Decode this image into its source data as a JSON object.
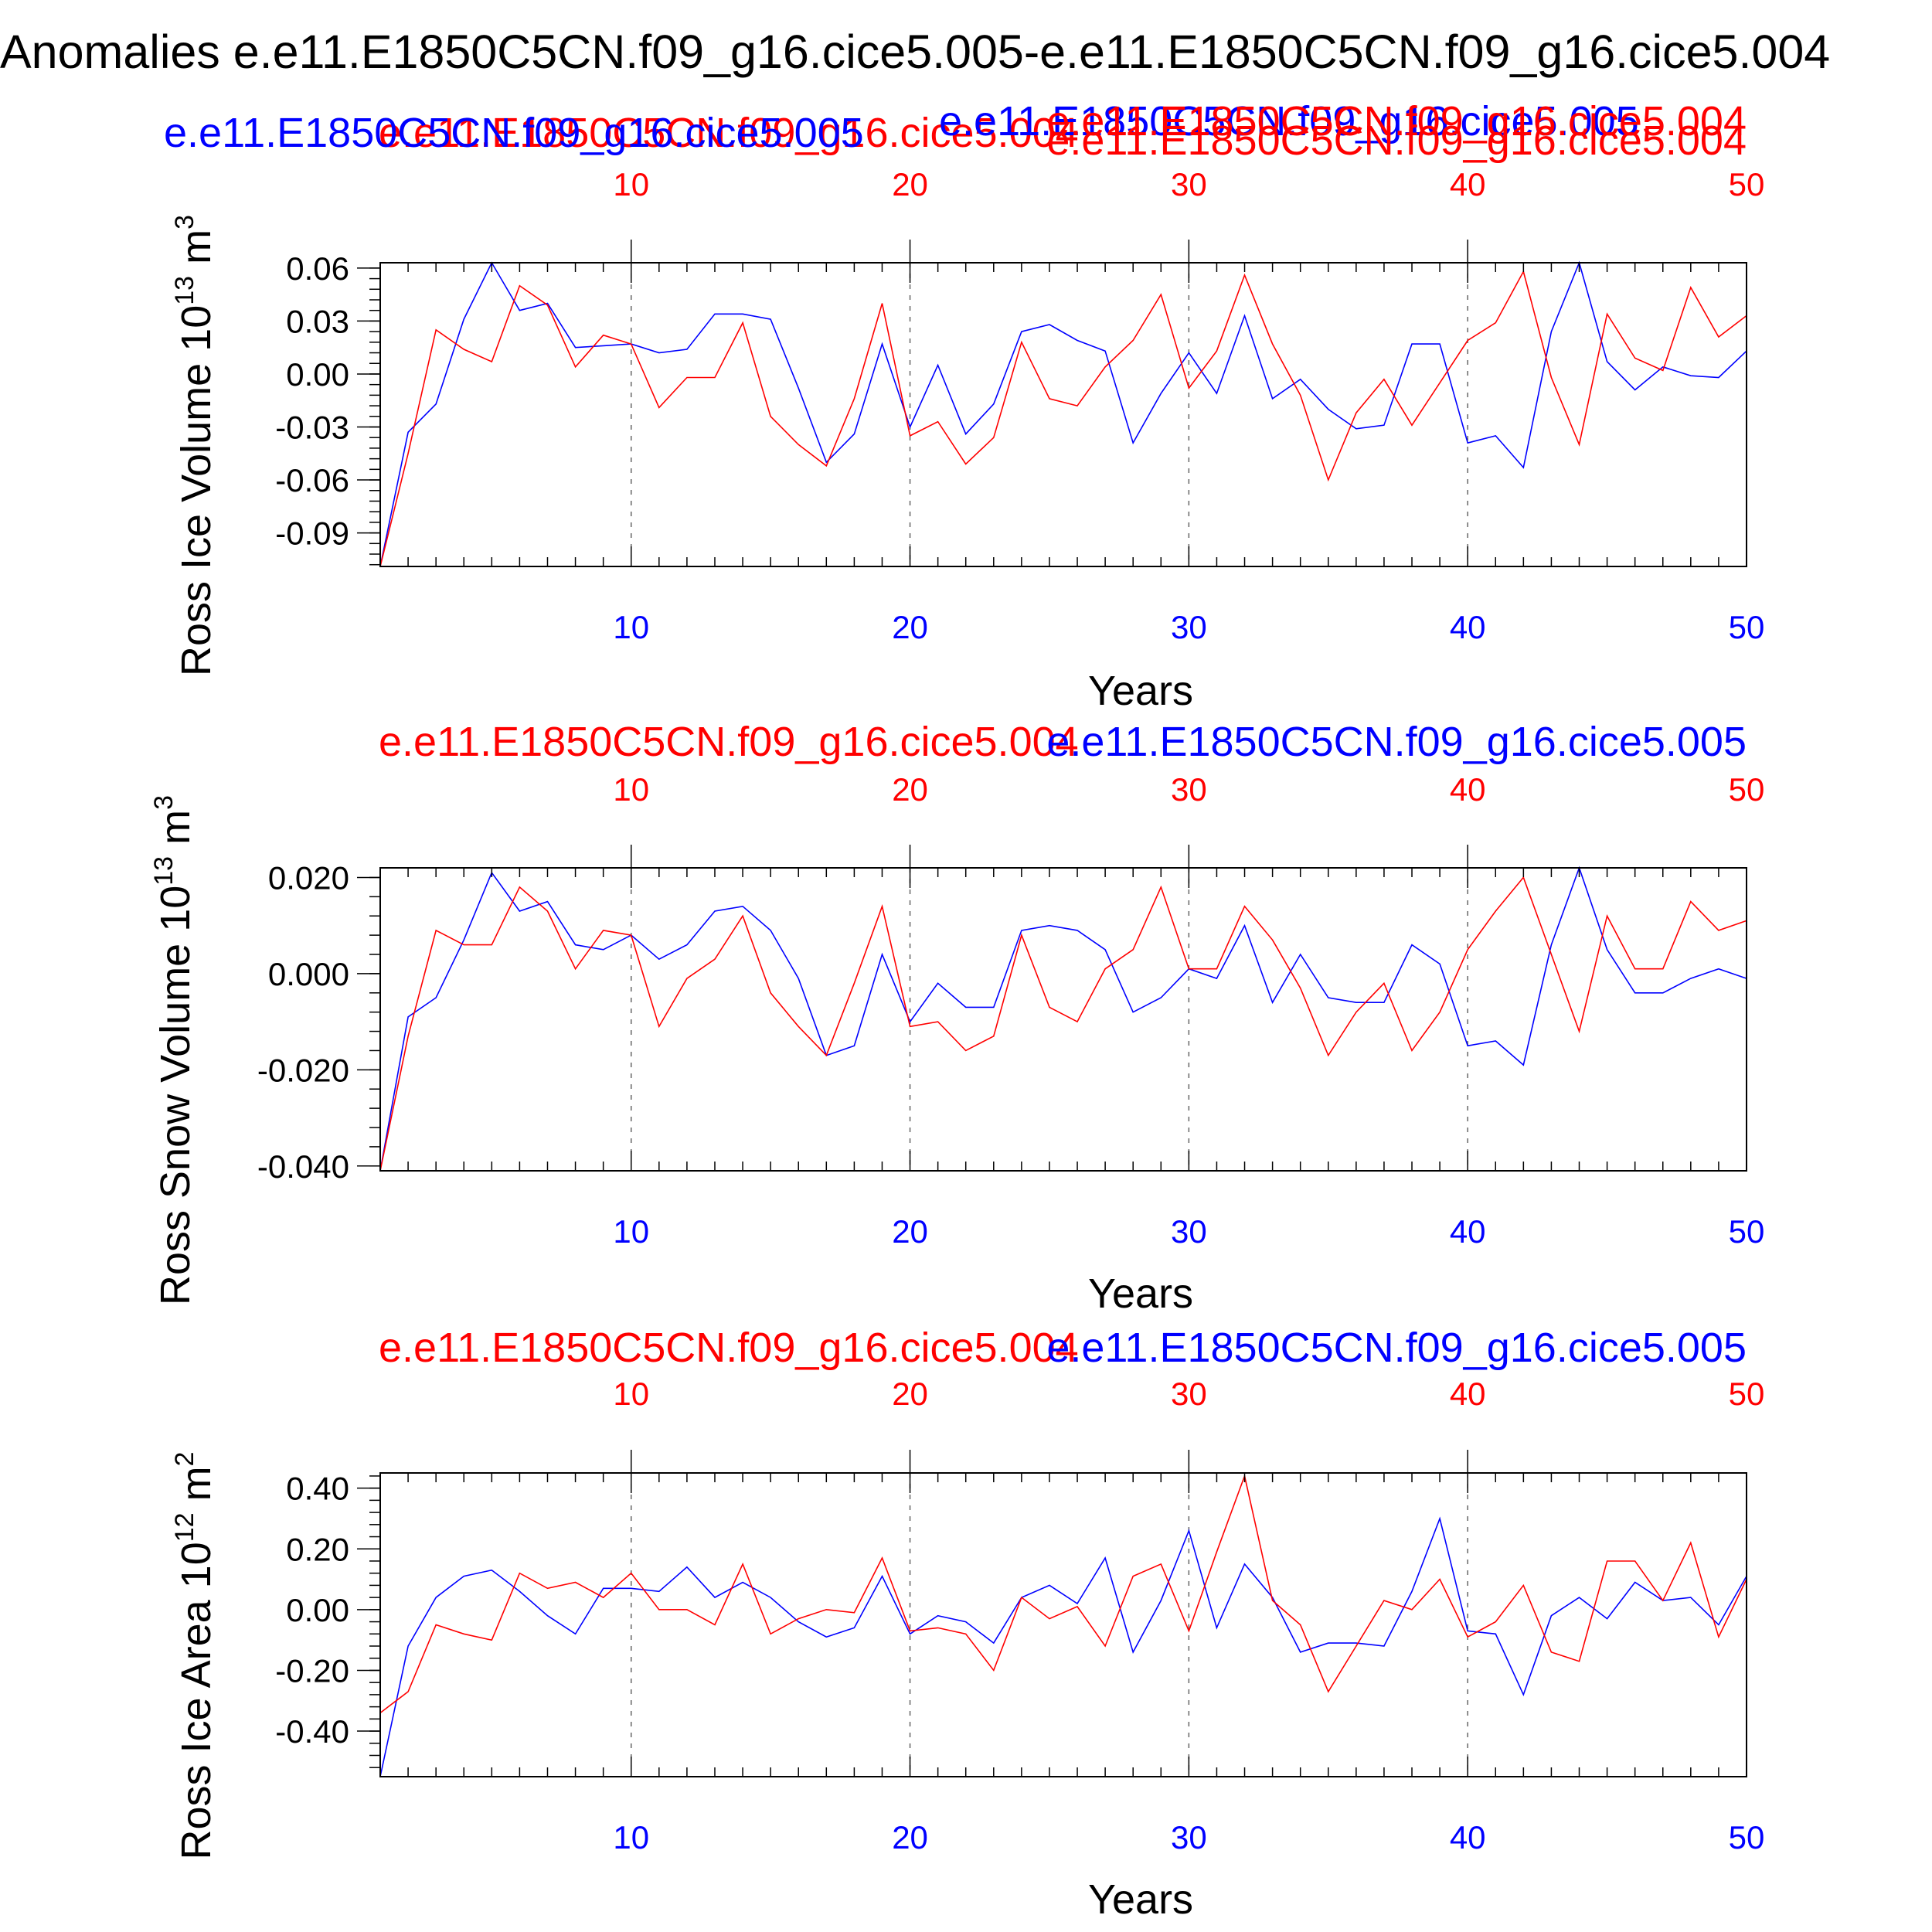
{
  "figure": {
    "title": "Anomalies e.e11.E1850C5CN.f09_g16.cice5.005-e.e11.E1850C5CN.f09_g16.cice5.004"
  },
  "colors": {
    "blue": "#0000ff",
    "red": "#ff0000",
    "axis": "#000000",
    "grid": "#666666"
  },
  "chart_data": [
    {
      "type": "line",
      "ylabel": "Ross Ice Volume 10",
      "ylabel_exp": "13",
      "ylabel_unit": " m",
      "ylabel_unit_exp": "3",
      "xlabel": "Years",
      "top_labels": [
        {
          "text": "e.e11.E1850C5CN.f09_g16.cice5.004",
          "color": "red"
        },
        {
          "text": "e.e11.E1850C5CN.f09_g16.cice5.005",
          "color": "blue"
        },
        {
          "text": "e.e11.E1850C5CN.f09_g16.cice5.005",
          "color": "blue"
        },
        {
          "text": "e.e11.E1850C5CN.f09_g16.cice5.004",
          "color": "red"
        },
        {
          "text": "e.e11.E1850C5CN.f09_g16.cice5.004",
          "color": "red"
        }
      ],
      "xlim": [
        1,
        50
      ],
      "xticks": [
        10,
        20,
        30,
        40,
        50
      ],
      "ylim": [
        -0.109,
        0.063
      ],
      "yticks": [
        0.06,
        0.03,
        0.0,
        -0.03,
        -0.06,
        -0.09
      ],
      "ytick_labels": [
        "0.06",
        "0.03",
        "0.00",
        "-0.03",
        "-0.06",
        "-0.09"
      ],
      "yminor_step": 0.006,
      "x": [
        1,
        2,
        3,
        4,
        5,
        6,
        7,
        8,
        9,
        10,
        11,
        12,
        13,
        14,
        15,
        16,
        17,
        18,
        19,
        20,
        21,
        22,
        23,
        24,
        25,
        26,
        27,
        28,
        29,
        30,
        31,
        32,
        33,
        34,
        35,
        36,
        37,
        38,
        39,
        40,
        41,
        42,
        43,
        44,
        45,
        46,
        47,
        48,
        49,
        50
      ],
      "series": [
        {
          "name": "e.e11.E1850C5CN.f09_g16.cice5.005",
          "color": "blue",
          "values": [
            -0.109,
            -0.033,
            -0.017,
            0.031,
            0.063,
            0.036,
            0.04,
            0.015,
            0.016,
            0.017,
            0.012,
            0.014,
            0.034,
            0.034,
            0.031,
            -0.008,
            -0.05,
            -0.034,
            0.017,
            -0.03,
            0.005,
            -0.034,
            -0.017,
            0.024,
            0.028,
            0.019,
            0.013,
            -0.039,
            -0.011,
            0.012,
            -0.011,
            0.033,
            -0.014,
            -0.003,
            -0.02,
            -0.031,
            -0.029,
            0.017,
            0.017,
            -0.039,
            -0.035,
            -0.053,
            0.024,
            0.063,
            0.007,
            -0.009,
            0.004,
            -0.001,
            -0.002,
            0.013
          ]
        },
        {
          "name": "e.e11.E1850C5CN.f09_g16.cice5.004",
          "color": "red",
          "values": [
            -0.109,
            -0.045,
            0.025,
            0.014,
            0.007,
            0.05,
            0.039,
            0.004,
            0.022,
            0.017,
            -0.019,
            -0.002,
            -0.002,
            0.029,
            -0.024,
            -0.04,
            -0.052,
            -0.014,
            0.04,
            -0.035,
            -0.027,
            -0.051,
            -0.036,
            0.018,
            -0.014,
            -0.018,
            0.004,
            0.019,
            0.045,
            -0.008,
            0.013,
            0.056,
            0.017,
            -0.012,
            -0.06,
            -0.022,
            -0.003,
            -0.029,
            -0.005,
            0.019,
            0.029,
            0.058,
            -0.002,
            -0.04,
            0.034,
            0.009,
            0.002,
            0.049,
            0.021,
            0.033
          ]
        }
      ]
    },
    {
      "type": "line",
      "ylabel": "Ross Snow Volume 10",
      "ylabel_exp": "13",
      "ylabel_unit": " m",
      "ylabel_unit_exp": "3",
      "xlabel": "Years",
      "top_labels": [
        {
          "text": "e.e11.E1850C5CN.f09_g16.cice5.004",
          "color": "red"
        },
        {
          "text": "e.e11.E1850C5CN.f09_g16.cice5.005",
          "color": "blue"
        }
      ],
      "xlim": [
        1,
        50
      ],
      "xticks": [
        10,
        20,
        30,
        40,
        50
      ],
      "ylim": [
        -0.041,
        0.022
      ],
      "yticks": [
        0.02,
        0.0,
        -0.02,
        -0.04
      ],
      "ytick_labels": [
        "0.020",
        "0.000",
        "-0.020",
        "-0.040"
      ],
      "yminor_step": 0.004,
      "x": [
        1,
        2,
        3,
        4,
        5,
        6,
        7,
        8,
        9,
        10,
        11,
        12,
        13,
        14,
        15,
        16,
        17,
        18,
        19,
        20,
        21,
        22,
        23,
        24,
        25,
        26,
        27,
        28,
        29,
        30,
        31,
        32,
        33,
        34,
        35,
        36,
        37,
        38,
        39,
        40,
        41,
        42,
        43,
        44,
        45,
        46,
        47,
        48,
        49,
        50
      ],
      "series": [
        {
          "name": "e.e11.E1850C5CN.f09_g16.cice5.005",
          "color": "blue",
          "values": [
            -0.041,
            -0.009,
            -0.005,
            0.007,
            0.021,
            0.013,
            0.015,
            0.006,
            0.005,
            0.008,
            0.003,
            0.006,
            0.013,
            0.014,
            0.009,
            -0.001,
            -0.017,
            -0.015,
            0.004,
            -0.01,
            -0.002,
            -0.007,
            -0.007,
            0.009,
            0.01,
            0.009,
            0.005,
            -0.008,
            -0.005,
            0.001,
            -0.001,
            0.01,
            -0.006,
            0.004,
            -0.005,
            -0.006,
            -0.006,
            0.006,
            0.002,
            -0.015,
            -0.014,
            -0.019,
            0.006,
            0.022,
            0.005,
            -0.004,
            -0.004,
            -0.001,
            0.001,
            -0.001
          ]
        },
        {
          "name": "e.e11.E1850C5CN.f09_g16.cice5.004",
          "color": "red",
          "values": [
            -0.041,
            -0.013,
            0.009,
            0.006,
            0.006,
            0.018,
            0.013,
            0.001,
            0.009,
            0.008,
            -0.011,
            -0.001,
            0.003,
            0.012,
            -0.004,
            -0.011,
            -0.017,
            -0.002,
            0.014,
            -0.011,
            -0.01,
            -0.016,
            -0.013,
            0.008,
            -0.007,
            -0.01,
            0.001,
            0.005,
            0.018,
            0.001,
            0.001,
            0.014,
            0.007,
            -0.003,
            -0.017,
            -0.008,
            -0.002,
            -0.016,
            -0.008,
            0.005,
            0.013,
            0.02,
            0.004,
            -0.012,
            0.012,
            0.001,
            0.001,
            0.015,
            0.009,
            0.011
          ]
        }
      ]
    },
    {
      "type": "line",
      "ylabel": "Ross Ice Area 10",
      "ylabel_exp": "12",
      "ylabel_unit": " m",
      "ylabel_unit_exp": "2",
      "xlabel": "Years",
      "top_labels": [
        {
          "text": "e.e11.E1850C5CN.f09_g16.cice5.004",
          "color": "red"
        },
        {
          "text": "e.e11.E1850C5CN.f09_g16.cice5.005",
          "color": "blue"
        }
      ],
      "xlim": [
        1,
        50
      ],
      "xticks": [
        10,
        20,
        30,
        40,
        50
      ],
      "ylim": [
        -0.55,
        0.45
      ],
      "yticks": [
        0.4,
        0.2,
        0.0,
        -0.2,
        -0.4
      ],
      "ytick_labels": [
        "0.40",
        "0.20",
        "0.00",
        "-0.20",
        "-0.40"
      ],
      "yminor_step": 0.04,
      "x": [
        1,
        2,
        3,
        4,
        5,
        6,
        7,
        8,
        9,
        10,
        11,
        12,
        13,
        14,
        15,
        16,
        17,
        18,
        19,
        20,
        21,
        22,
        23,
        24,
        25,
        26,
        27,
        28,
        29,
        30,
        31,
        32,
        33,
        34,
        35,
        36,
        37,
        38,
        39,
        40,
        41,
        42,
        43,
        44,
        45,
        46,
        47,
        48,
        49,
        50
      ],
      "series": [
        {
          "name": "e.e11.E1850C5CN.f09_g16.cice5.005",
          "color": "blue",
          "values": [
            -0.55,
            -0.12,
            0.04,
            0.11,
            0.13,
            0.06,
            -0.02,
            -0.08,
            0.07,
            0.07,
            0.06,
            0.14,
            0.04,
            0.09,
            0.04,
            -0.04,
            -0.09,
            -0.06,
            0.11,
            -0.08,
            -0.02,
            -0.04,
            -0.11,
            0.04,
            0.08,
            0.02,
            0.17,
            -0.14,
            0.03,
            0.26,
            -0.06,
            0.15,
            0.04,
            -0.14,
            -0.11,
            -0.11,
            -0.12,
            0.06,
            0.3,
            -0.07,
            -0.08,
            -0.28,
            -0.02,
            0.04,
            -0.03,
            0.09,
            0.03,
            0.04,
            -0.05,
            0.11
          ]
        },
        {
          "name": "e.e11.E1850C5CN.f09_g16.cice5.004",
          "color": "red",
          "values": [
            -0.34,
            -0.27,
            -0.05,
            -0.08,
            -0.1,
            0.12,
            0.07,
            0.09,
            0.04,
            0.12,
            0.0,
            0.0,
            -0.05,
            0.15,
            -0.08,
            -0.03,
            0.0,
            -0.01,
            0.17,
            -0.07,
            -0.06,
            -0.08,
            -0.2,
            0.04,
            -0.03,
            0.01,
            -0.12,
            0.11,
            0.15,
            -0.07,
            0.19,
            0.44,
            0.03,
            -0.05,
            -0.27,
            -0.12,
            0.03,
            0.0,
            0.1,
            -0.09,
            -0.04,
            0.08,
            -0.14,
            -0.17,
            0.16,
            0.16,
            0.03,
            0.22,
            -0.09,
            0.1
          ]
        }
      ]
    }
  ]
}
